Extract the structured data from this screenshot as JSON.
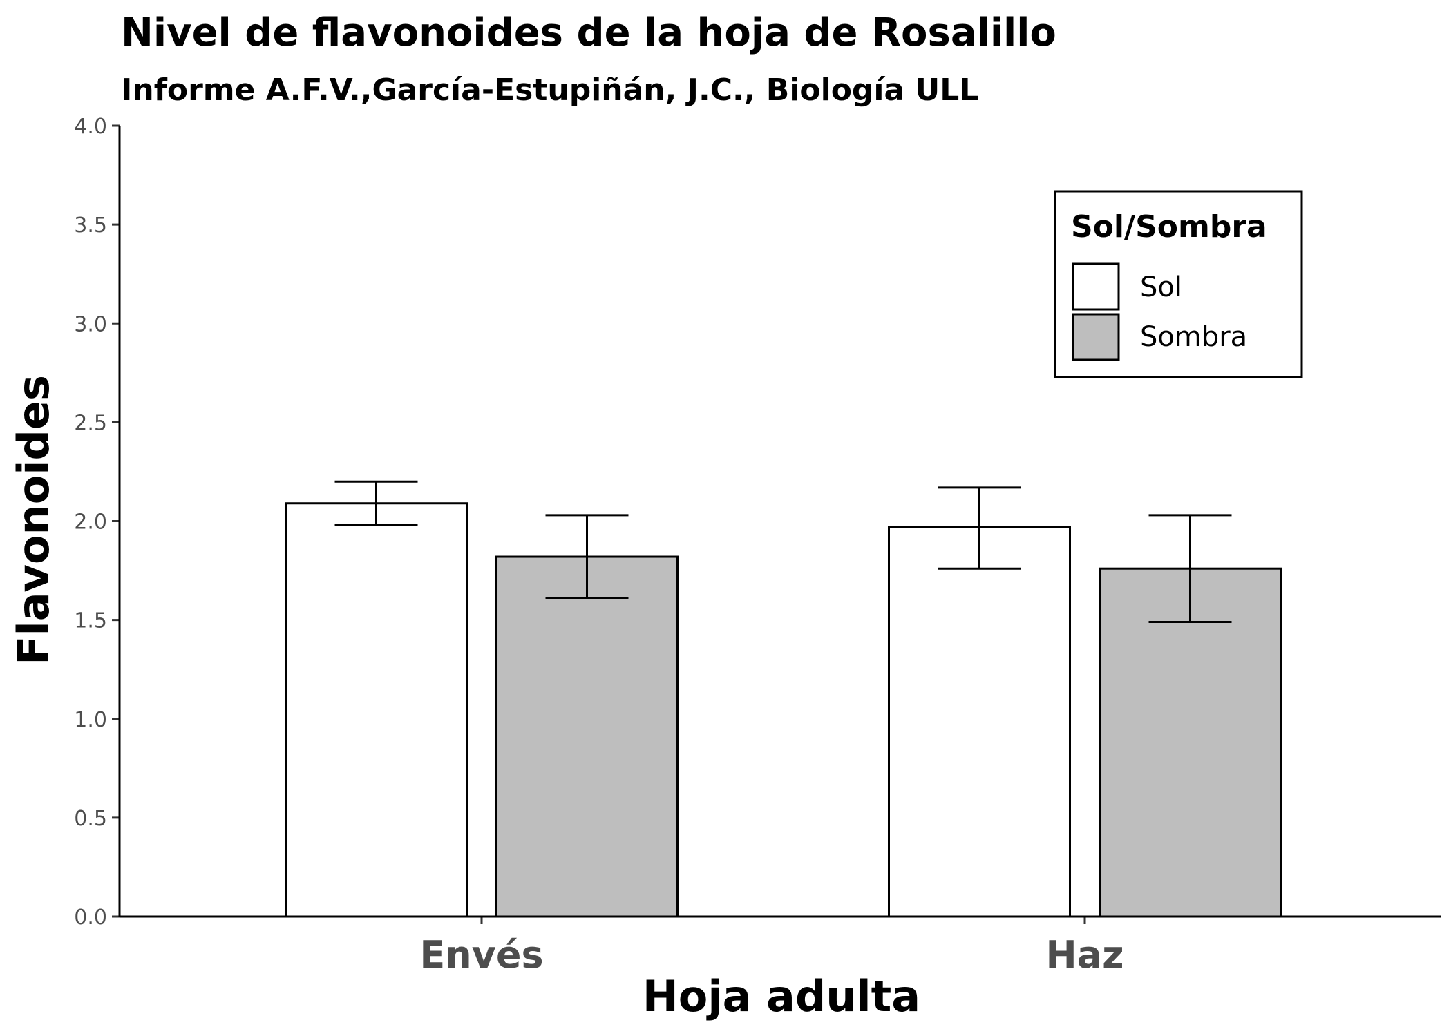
{
  "chart_data": {
    "type": "bar",
    "title": "Nivel de flavonoides de la hoja de Rosalillo",
    "subtitle": "Informe A.F.V.,García-Estupiñán, J.C., Biología ULL",
    "xlabel": "Hoja adulta",
    "ylabel": "Flavonoides",
    "ylim": [
      0,
      4
    ],
    "yticks": [
      "0.0",
      "0.5",
      "1.0",
      "1.5",
      "2.0",
      "2.5",
      "3.0",
      "3.5",
      "4.0"
    ],
    "categories": [
      "Envés",
      "Haz"
    ],
    "series": [
      {
        "name": "Sol",
        "color": "#ffffff",
        "values": [
          2.09,
          1.97
        ],
        "err_low": [
          1.98,
          1.76
        ],
        "err_high": [
          2.2,
          2.17
        ]
      },
      {
        "name": "Sombra",
        "color": "#bebebe",
        "values": [
          1.82,
          1.76
        ],
        "err_low": [
          1.61,
          1.49
        ],
        "err_high": [
          2.03,
          2.03
        ]
      }
    ],
    "legend": {
      "title": "Sol/Sombra",
      "placement": "top-right"
    },
    "grid": false
  }
}
